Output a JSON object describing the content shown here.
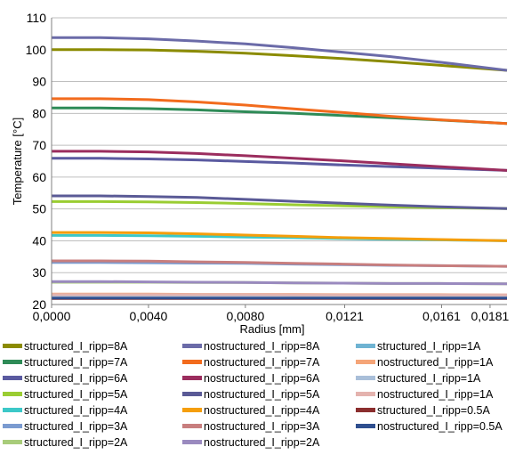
{
  "chart_data": {
    "type": "line",
    "title": "",
    "xlabel": "Radius [mm]",
    "ylabel": "Temperature [°C]",
    "ylim": [
      20,
      110
    ],
    "yticks": [
      "20",
      "30",
      "40",
      "50",
      "60",
      "70",
      "80",
      "90",
      "100",
      "110"
    ],
    "xlim": [
      0,
      0.0188
    ],
    "xticks": [
      {
        "value": 0.0,
        "label": "0,0000"
      },
      {
        "value": 0.004,
        "label": "0,0040"
      },
      {
        "value": 0.008,
        "label": "0,0080"
      },
      {
        "value": 0.0121,
        "label": "0,0121"
      },
      {
        "value": 0.0161,
        "label": "0,0161"
      },
      {
        "value": 0.0181,
        "label": "0,0181"
      }
    ],
    "grid": "horizontal",
    "legend_position": "bottom",
    "series": [
      {
        "name": "structured_I_ripp=8A",
        "color": "#8B8B00",
        "values": [
          [
            0,
            100.0
          ],
          [
            0.002,
            100.0
          ],
          [
            0.004,
            99.9
          ],
          [
            0.006,
            99.5
          ],
          [
            0.008,
            98.9
          ],
          [
            0.01,
            98.1
          ],
          [
            0.012,
            97.2
          ],
          [
            0.014,
            96.2
          ],
          [
            0.016,
            95.1
          ],
          [
            0.0188,
            93.5
          ]
        ]
      },
      {
        "name": "nostructured_I_ripp=8A",
        "color": "#6B6BA8",
        "values": [
          [
            0,
            103.8
          ],
          [
            0.002,
            103.8
          ],
          [
            0.004,
            103.4
          ],
          [
            0.006,
            102.7
          ],
          [
            0.008,
            101.8
          ],
          [
            0.01,
            100.6
          ],
          [
            0.012,
            99.2
          ],
          [
            0.014,
            97.8
          ],
          [
            0.016,
            96.1
          ],
          [
            0.0188,
            93.5
          ]
        ]
      },
      {
        "name": "structured_I_ripp=7A",
        "color": "#2E8B57",
        "values": [
          [
            0,
            81.7
          ],
          [
            0.002,
            81.7
          ],
          [
            0.004,
            81.5
          ],
          [
            0.006,
            81.1
          ],
          [
            0.008,
            80.5
          ],
          [
            0.01,
            80.0
          ],
          [
            0.012,
            79.3
          ],
          [
            0.014,
            78.6
          ],
          [
            0.016,
            77.9
          ],
          [
            0.0188,
            76.8
          ]
        ]
      },
      {
        "name": "nostructured_I_ripp=7A",
        "color": "#F26B1D",
        "values": [
          [
            0,
            84.6
          ],
          [
            0.002,
            84.6
          ],
          [
            0.004,
            84.3
          ],
          [
            0.006,
            83.6
          ],
          [
            0.008,
            82.6
          ],
          [
            0.01,
            81.4
          ],
          [
            0.012,
            80.3
          ],
          [
            0.014,
            79.1
          ],
          [
            0.016,
            78.0
          ],
          [
            0.0188,
            76.8
          ]
        ]
      },
      {
        "name": "structured_I_ripp=6A",
        "color": "#5A5AA0",
        "values": [
          [
            0,
            65.9
          ],
          [
            0.002,
            65.9
          ],
          [
            0.004,
            65.7
          ],
          [
            0.006,
            65.4
          ],
          [
            0.008,
            64.9
          ],
          [
            0.01,
            64.4
          ],
          [
            0.012,
            63.8
          ],
          [
            0.014,
            63.3
          ],
          [
            0.016,
            62.8
          ],
          [
            0.0188,
            62.1
          ]
        ]
      },
      {
        "name": "nostructured_I_ripp=6A",
        "color": "#9B2D5E",
        "values": [
          [
            0,
            68.1
          ],
          [
            0.002,
            68.1
          ],
          [
            0.004,
            67.9
          ],
          [
            0.006,
            67.4
          ],
          [
            0.008,
            66.7
          ],
          [
            0.01,
            65.9
          ],
          [
            0.012,
            65.1
          ],
          [
            0.014,
            64.2
          ],
          [
            0.016,
            63.3
          ],
          [
            0.0188,
            62.1
          ]
        ]
      },
      {
        "name": "structured_I_ripp=5A",
        "color": "#9ACD32",
        "values": [
          [
            0,
            52.3
          ],
          [
            0.002,
            52.3
          ],
          [
            0.004,
            52.2
          ],
          [
            0.006,
            52.0
          ],
          [
            0.008,
            51.7
          ],
          [
            0.01,
            51.3
          ],
          [
            0.012,
            51.0
          ],
          [
            0.014,
            50.7
          ],
          [
            0.016,
            50.4
          ],
          [
            0.0188,
            50.1
          ]
        ]
      },
      {
        "name": "nostructured_I_ripp=5A",
        "color": "#5A5A96",
        "values": [
          [
            0,
            54.1
          ],
          [
            0.002,
            54.1
          ],
          [
            0.004,
            53.9
          ],
          [
            0.006,
            53.6
          ],
          [
            0.008,
            53.0
          ],
          [
            0.01,
            52.4
          ],
          [
            0.012,
            51.8
          ],
          [
            0.014,
            51.2
          ],
          [
            0.016,
            50.7
          ],
          [
            0.0188,
            50.1
          ]
        ]
      },
      {
        "name": "structured_I_ripp=4A",
        "color": "#3CC8C8",
        "values": [
          [
            0,
            41.7
          ],
          [
            0.002,
            41.7
          ],
          [
            0.004,
            41.6
          ],
          [
            0.006,
            41.4
          ],
          [
            0.008,
            41.2
          ],
          [
            0.01,
            41.0
          ],
          [
            0.012,
            40.7
          ],
          [
            0.014,
            40.5
          ],
          [
            0.016,
            40.3
          ],
          [
            0.0188,
            40.0
          ]
        ]
      },
      {
        "name": "nostructured_I_ripp=4A",
        "color": "#F59E0B",
        "values": [
          [
            0,
            42.6
          ],
          [
            0.002,
            42.6
          ],
          [
            0.004,
            42.5
          ],
          [
            0.006,
            42.2
          ],
          [
            0.008,
            41.8
          ],
          [
            0.01,
            41.4
          ],
          [
            0.012,
            41.0
          ],
          [
            0.014,
            40.7
          ],
          [
            0.016,
            40.4
          ],
          [
            0.0188,
            40.0
          ]
        ]
      },
      {
        "name": "structured_I_ripp=3A",
        "color": "#7B9BD0",
        "values": [
          [
            0,
            33.2
          ],
          [
            0.002,
            33.2
          ],
          [
            0.004,
            33.1
          ],
          [
            0.006,
            33.0
          ],
          [
            0.008,
            32.9
          ],
          [
            0.01,
            32.7
          ],
          [
            0.012,
            32.5
          ],
          [
            0.014,
            32.3
          ],
          [
            0.016,
            32.2
          ],
          [
            0.0188,
            32.0
          ]
        ]
      },
      {
        "name": "nostructured_I_ripp=3A",
        "color": "#C87E7E",
        "values": [
          [
            0,
            33.7
          ],
          [
            0.002,
            33.7
          ],
          [
            0.004,
            33.6
          ],
          [
            0.006,
            33.4
          ],
          [
            0.008,
            33.2
          ],
          [
            0.01,
            32.9
          ],
          [
            0.012,
            32.7
          ],
          [
            0.014,
            32.4
          ],
          [
            0.016,
            32.2
          ],
          [
            0.0188,
            32.0
          ]
        ]
      },
      {
        "name": "structured_I_ripp=2A",
        "color": "#A8CC7A",
        "values": [
          [
            0,
            27.0
          ],
          [
            0.002,
            27.0
          ],
          [
            0.004,
            27.0
          ],
          [
            0.006,
            26.9
          ],
          [
            0.008,
            26.9
          ],
          [
            0.01,
            26.8
          ],
          [
            0.012,
            26.7
          ],
          [
            0.014,
            26.6
          ],
          [
            0.016,
            26.6
          ],
          [
            0.0188,
            26.5
          ]
        ]
      },
      {
        "name": "nostructured_I_ripp=2A",
        "color": "#9A8ABF",
        "values": [
          [
            0,
            27.2
          ],
          [
            0.002,
            27.2
          ],
          [
            0.004,
            27.1
          ],
          [
            0.006,
            27.0
          ],
          [
            0.008,
            26.9
          ],
          [
            0.01,
            26.8
          ],
          [
            0.012,
            26.7
          ],
          [
            0.014,
            26.6
          ],
          [
            0.016,
            26.6
          ],
          [
            0.0188,
            26.5
          ]
        ]
      },
      {
        "name": "structured_I_ripp=1A",
        "color": "#6FB3D2",
        "values": [
          [
            0,
            23.0
          ],
          [
            0.002,
            23.0
          ],
          [
            0.004,
            23.0
          ],
          [
            0.006,
            23.0
          ],
          [
            0.008,
            23.0
          ],
          [
            0.01,
            22.9
          ],
          [
            0.012,
            22.9
          ],
          [
            0.014,
            22.9
          ],
          [
            0.016,
            22.9
          ],
          [
            0.0188,
            22.9
          ]
        ]
      },
      {
        "name": "nostructured_I_ripp=1A",
        "color": "#F5A578",
        "values": [
          [
            0,
            23.3
          ],
          [
            0.002,
            23.3
          ],
          [
            0.004,
            23.3
          ],
          [
            0.006,
            23.2
          ],
          [
            0.008,
            23.2
          ],
          [
            0.01,
            23.2
          ],
          [
            0.012,
            23.1
          ],
          [
            0.014,
            23.1
          ],
          [
            0.016,
            23.1
          ],
          [
            0.0188,
            23.0
          ]
        ]
      },
      {
        "name": "structured_I_ripp=1A",
        "color": "#A9BFD9",
        "values": [
          [
            0,
            22.9
          ],
          [
            0.004,
            22.9
          ],
          [
            0.008,
            22.9
          ],
          [
            0.012,
            22.9
          ],
          [
            0.016,
            22.9
          ],
          [
            0.0188,
            22.9
          ]
        ]
      },
      {
        "name": "nostructured_I_ripp=1A",
        "color": "#E4B3AE",
        "values": [
          [
            0,
            23.1
          ],
          [
            0.004,
            23.1
          ],
          [
            0.008,
            23.1
          ],
          [
            0.012,
            23.0
          ],
          [
            0.016,
            23.0
          ],
          [
            0.0188,
            23.0
          ]
        ]
      },
      {
        "name": "structured_I_ripp=0.5A",
        "color": "#8B2E2E",
        "values": [
          [
            0,
            21.9
          ],
          [
            0.004,
            21.9
          ],
          [
            0.008,
            21.9
          ],
          [
            0.012,
            21.9
          ],
          [
            0.016,
            21.9
          ],
          [
            0.0188,
            21.9
          ]
        ]
      },
      {
        "name": "nostructured_I_ripp=0.5A",
        "color": "#2F4F8F",
        "values": [
          [
            0,
            22.0
          ],
          [
            0.004,
            22.0
          ],
          [
            0.008,
            22.0
          ],
          [
            0.012,
            22.0
          ],
          [
            0.016,
            22.0
          ],
          [
            0.0188,
            22.0
          ]
        ]
      }
    ],
    "legend_columns": [
      [
        "structured_I_ripp=8A",
        "structured_I_ripp=7A",
        "structured_I_ripp=6A",
        "structured_I_ripp=5A",
        "structured_I_ripp=4A",
        "structured_I_ripp=3A",
        "structured_I_ripp=2A"
      ],
      [
        "nostructured_I_ripp=8A",
        "nostructured_I_ripp=7A",
        "nostructured_I_ripp=6A",
        "nostructured_I_ripp=5A",
        "nostructured_I_ripp=4A",
        "nostructured_I_ripp=3A",
        "nostructured_I_ripp=2A"
      ],
      [
        "structured_I_ripp=1A",
        "nostructured_I_ripp=1A",
        "structured_I_ripp=1A",
        "nostructured_I_ripp=1A",
        "structured_I_ripp=0.5A",
        "nostructured_I_ripp=0.5A"
      ]
    ]
  }
}
